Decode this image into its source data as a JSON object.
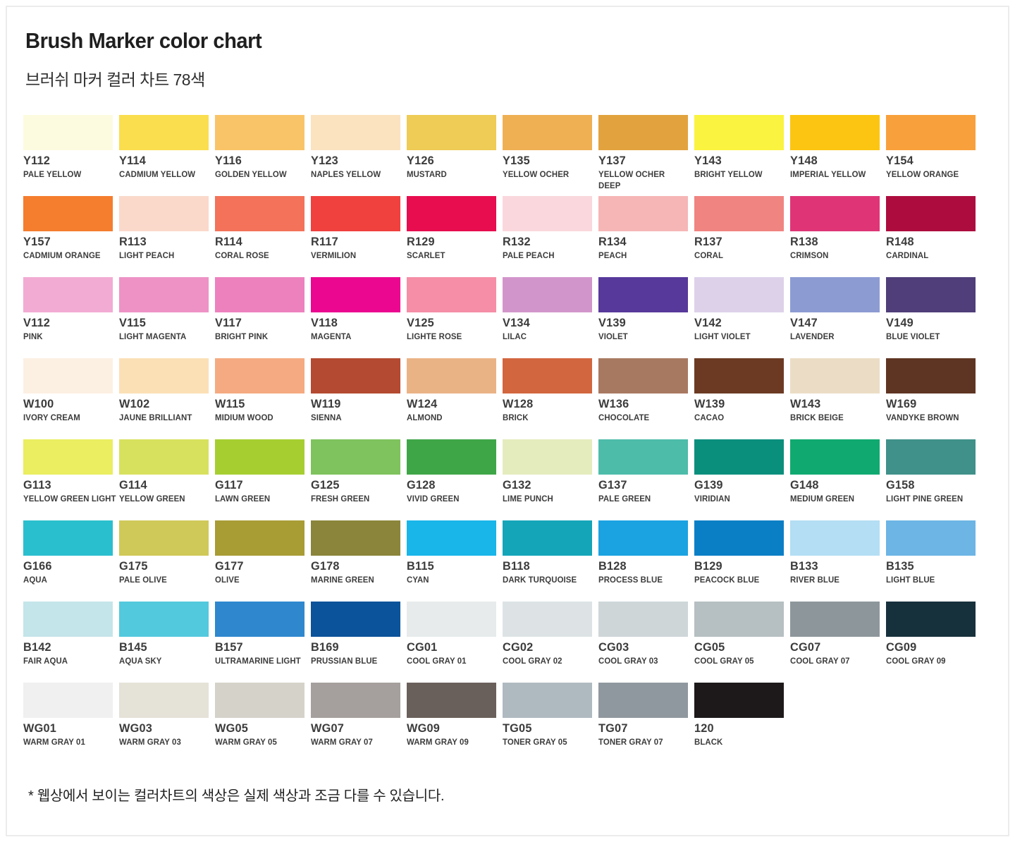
{
  "header": {
    "title": "Brush Marker color chart",
    "subtitle": "브러쉬 마커 컬러 차트 78색"
  },
  "footnote": "* 웹상에서 보이는 컬러차트의 색상은  실제 색상과 조금 다를 수 있습니다.",
  "palette": {
    "columns": 10,
    "total_colors": 78,
    "swatches": [
      {
        "code": "Y112",
        "name": "PALE YELLOW",
        "color": "#FDFBDF"
      },
      {
        "code": "Y114",
        "name": "CADMIUM YELLOW",
        "color": "#FADE4E"
      },
      {
        "code": "Y116",
        "name": "GOLDEN YELLOW",
        "color": "#F9C468"
      },
      {
        "code": "Y123",
        "name": "NAPLES YELLOW",
        "color": "#FBE3C0"
      },
      {
        "code": "Y126",
        "name": "MUSTARD",
        "color": "#EECC55"
      },
      {
        "code": "Y135",
        "name": "YELLOW OCHER",
        "color": "#EFB054"
      },
      {
        "code": "Y137",
        "name": "YELLOW OCHER\nDEEP",
        "color": "#E2A33E"
      },
      {
        "code": "Y143",
        "name": "BRIGHT YELLOW",
        "color": "#FAF33F"
      },
      {
        "code": "Y148",
        "name": "IMPERIAL YELLOW",
        "color": "#FCC511"
      },
      {
        "code": "Y154",
        "name": "YELLOW ORANGE",
        "color": "#F8A13C"
      },
      {
        "code": "Y157",
        "name": "CADMIUM ORANGE",
        "color": "#F47D2E"
      },
      {
        "code": "R113",
        "name": "LIGHT PEACH",
        "color": "#FAD9CB"
      },
      {
        "code": "R114",
        "name": "CORAL ROSE",
        "color": "#F37259"
      },
      {
        "code": "R117",
        "name": "VERMILION",
        "color": "#F0413E"
      },
      {
        "code": "R129",
        "name": "SCARLET",
        "color": "#E70D4F"
      },
      {
        "code": "R132",
        "name": "PALE PEACH",
        "color": "#FAD7DC"
      },
      {
        "code": "R134",
        "name": "PEACH",
        "color": "#F6B6B6"
      },
      {
        "code": "R137",
        "name": "CORAL",
        "color": "#F08481"
      },
      {
        "code": "R138",
        "name": "CRIMSON",
        "color": "#DF3577"
      },
      {
        "code": "R148",
        "name": "CARDINAL",
        "color": "#AD0C3F"
      },
      {
        "code": "V112",
        "name": "PINK",
        "color": "#F2ABD3"
      },
      {
        "code": "V115",
        "name": "LIGHT MAGENTA",
        "color": "#EE92C6"
      },
      {
        "code": "V117",
        "name": "BRIGHT PINK",
        "color": "#ED81BE"
      },
      {
        "code": "V118",
        "name": "MAGENTA",
        "color": "#EB0790"
      },
      {
        "code": "V125",
        "name": "LIGHTE ROSE",
        "color": "#F58EA6"
      },
      {
        "code": "V134",
        "name": "LILAC",
        "color": "#D295CB"
      },
      {
        "code": "V139",
        "name": "VIOLET",
        "color": "#57399B"
      },
      {
        "code": "V142",
        "name": "LIGHT VIOLET",
        "color": "#DDD1EA"
      },
      {
        "code": "V147",
        "name": "LAVENDER",
        "color": "#8D9BD3"
      },
      {
        "code": "V149",
        "name": "BLUE VIOLET",
        "color": "#4F3E79"
      },
      {
        "code": "W100",
        "name": "IVORY CREAM",
        "color": "#FCF0E3"
      },
      {
        "code": "W102",
        "name": "JAUNE BRILLIANT",
        "color": "#FBE0B6"
      },
      {
        "code": "W115",
        "name": "MIDIUM WOOD",
        "color": "#F5AA81"
      },
      {
        "code": "W119",
        "name": "SIENNA",
        "color": "#B44A31"
      },
      {
        "code": "W124",
        "name": "ALMOND",
        "color": "#EAB386"
      },
      {
        "code": "W128",
        "name": "BRICK",
        "color": "#D2663E"
      },
      {
        "code": "W136",
        "name": "CHOCOLATE",
        "color": "#A87961"
      },
      {
        "code": "W139",
        "name": "CACAO",
        "color": "#6C3A23"
      },
      {
        "code": "W143",
        "name": "BRICK BEIGE",
        "color": "#EBDDC5"
      },
      {
        "code": "W169",
        "name": "VANDYKE BROWN",
        "color": "#5E3522"
      },
      {
        "code": "G113",
        "name": "YELLOW GREEN LIGHT",
        "color": "#EAEE60"
      },
      {
        "code": "G114",
        "name": "YELLOW GREEN",
        "color": "#D8E15E"
      },
      {
        "code": "G117",
        "name": "LAWN GREEN",
        "color": "#A6CE31"
      },
      {
        "code": "G125",
        "name": "FRESH GREEN",
        "color": "#7EC35D"
      },
      {
        "code": "G128",
        "name": "VIVID GREEN",
        "color": "#3FA648"
      },
      {
        "code": "G132",
        "name": "LIME PUNCH",
        "color": "#E4ECBE"
      },
      {
        "code": "G137",
        "name": "PALE GREEN",
        "color": "#4DBCA9"
      },
      {
        "code": "G139",
        "name": "VIRIDIAN",
        "color": "#0B8F7D"
      },
      {
        "code": "G148",
        "name": "MEDIUM GREEN",
        "color": "#10AA70"
      },
      {
        "code": "G158",
        "name": "LIGHT PINE GREEN",
        "color": "#3F9189"
      },
      {
        "code": "G166",
        "name": "AQUA",
        "color": "#2ABFCE"
      },
      {
        "code": "G175",
        "name": "PALE OLIVE",
        "color": "#CFC959"
      },
      {
        "code": "G177",
        "name": "OLIVE",
        "color": "#A89C35"
      },
      {
        "code": "G178",
        "name": "MARINE GREEN",
        "color": "#8B853B"
      },
      {
        "code": "B115",
        "name": "CYAN",
        "color": "#18B6E9"
      },
      {
        "code": "B118",
        "name": "DARK TURQUOISE",
        "color": "#14A5B9"
      },
      {
        "code": "B128",
        "name": "PROCESS BLUE",
        "color": "#1BA3E1"
      },
      {
        "code": "B129",
        "name": "PEACOCK BLUE",
        "color": "#0B7FC6"
      },
      {
        "code": "B133",
        "name": "RIVER BLUE",
        "color": "#B3DEF3"
      },
      {
        "code": "B135",
        "name": "LIGHT BLUE",
        "color": "#6DB5E5"
      },
      {
        "code": "B142",
        "name": "FAIR AQUA",
        "color": "#C4E5E9"
      },
      {
        "code": "B145",
        "name": "AQUA SKY",
        "color": "#53C9DD"
      },
      {
        "code": "B157",
        "name": "ULTRAMARINE LIGHT",
        "color": "#2F87CE"
      },
      {
        "code": "B169",
        "name": "PRUSSIAN BLUE",
        "color": "#0B539A"
      },
      {
        "code": "CG01",
        "name": "COOL GRAY 01",
        "color": "#E7EBEB"
      },
      {
        "code": "CG02",
        "name": "COOL GRAY 02",
        "color": "#DDE3E4"
      },
      {
        "code": "CG03",
        "name": "COOL GRAY 03",
        "color": "#CED6D8"
      },
      {
        "code": "CG05",
        "name": "COOL GRAY 05",
        "color": "#B6BFC1"
      },
      {
        "code": "CG07",
        "name": "COOL GRAY 07",
        "color": "#8D979B"
      },
      {
        "code": "CG09",
        "name": "COOL GRAY 09",
        "color": "#17313C"
      },
      {
        "code": "WG01",
        "name": "WARM GRAY 01",
        "color": "#EFF0EF"
      },
      {
        "code": "WG03",
        "name": "WARM GRAY 03",
        "color": "#E5E2D7"
      },
      {
        "code": "WG05",
        "name": "WARM GRAY 05",
        "color": "#D5D2C9"
      },
      {
        "code": "WG07",
        "name": "WARM GRAY 07",
        "color": "#A5A09D"
      },
      {
        "code": "WG09",
        "name": "WARM GRAY 09",
        "color": "#6A605B"
      },
      {
        "code": "TG05",
        "name": "TONER GRAY 05",
        "color": "#AFB9C0"
      },
      {
        "code": "TG07",
        "name": "TONER GRAY 07",
        "color": "#8F989E"
      },
      {
        "code": "120",
        "name": "BLACK",
        "color": "#1D191A"
      }
    ]
  }
}
